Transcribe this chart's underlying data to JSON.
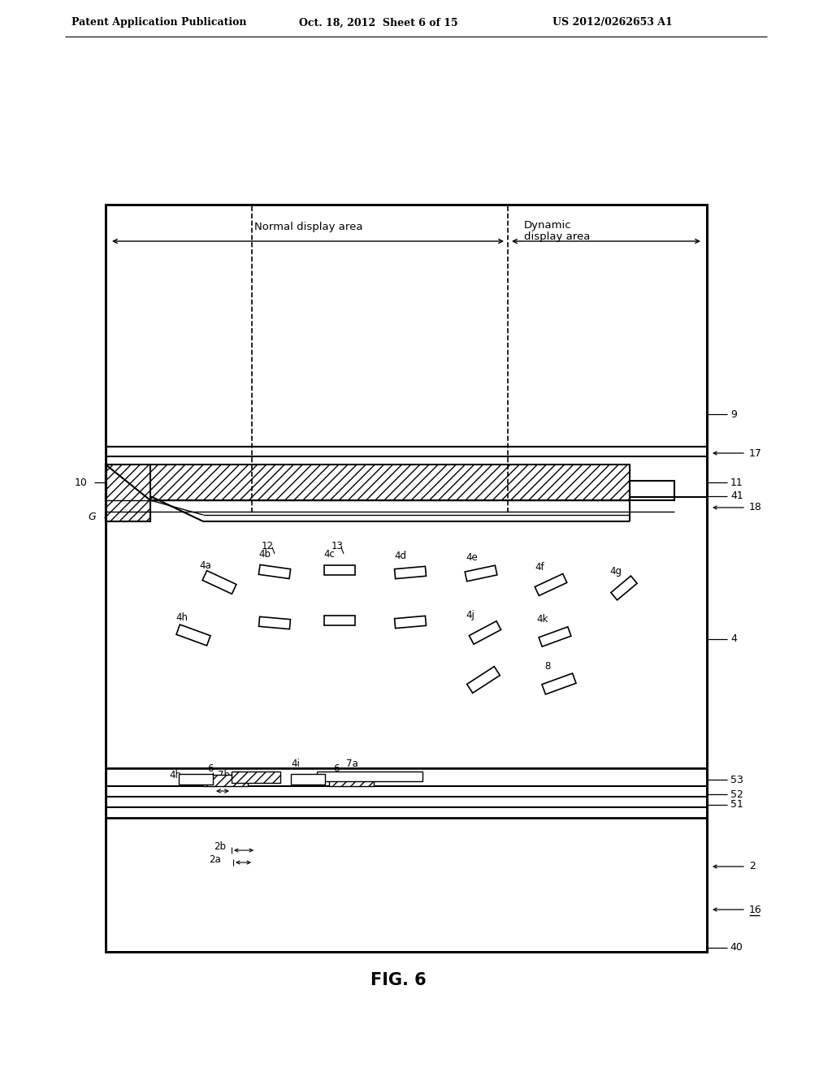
{
  "header_left": "Patent Application Publication",
  "header_mid": "Oct. 18, 2012  Sheet 6 of 15",
  "header_right": "US 2012/0262653 A1",
  "fig_label": "FIG. 6",
  "bg": "#ffffff"
}
